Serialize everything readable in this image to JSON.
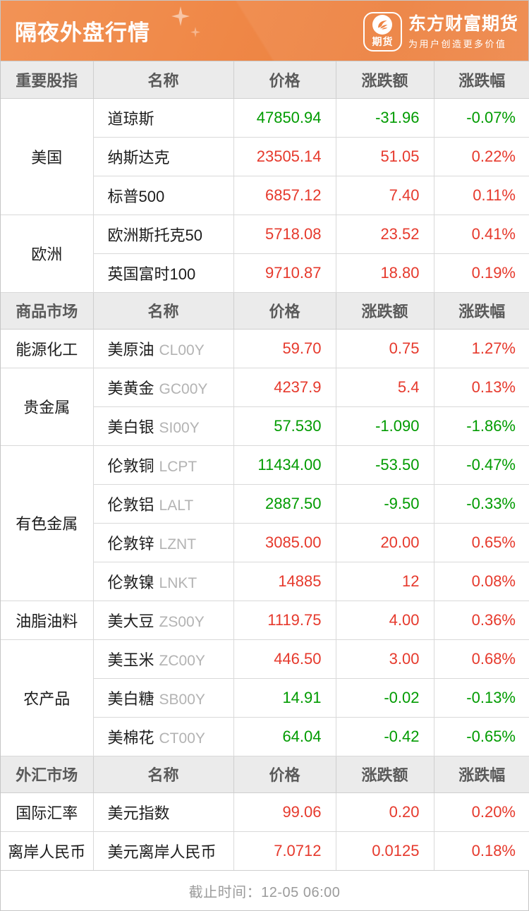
{
  "header": {
    "title": "隔夜外盘行情",
    "logo": {
      "badge_text": "期货",
      "brand": "东方财富期货",
      "slogan": "为用户创造更多价值"
    }
  },
  "columns": [
    "名称",
    "价格",
    "涨跌额",
    "涨跌幅"
  ],
  "colors": {
    "up": "#e6392c",
    "down": "#009b00",
    "banner_orange": "#ee8444",
    "section_header_bg": "#ebebeb",
    "code_gray": "#b3b3b3"
  },
  "sections": [
    {
      "label": "重要股指",
      "groups": [
        {
          "category": "美国",
          "rows": [
            {
              "name": "道琼斯",
              "code": "",
              "price": "47850.94",
              "change": "-31.96",
              "pct": "-0.07%"
            },
            {
              "name": "纳斯达克",
              "code": "",
              "price": "23505.14",
              "change": "51.05",
              "pct": "0.22%"
            },
            {
              "name": "标普500",
              "code": "",
              "price": "6857.12",
              "change": "7.40",
              "pct": "0.11%"
            }
          ]
        },
        {
          "category": "欧洲",
          "rows": [
            {
              "name": "欧洲斯托克50",
              "code": "",
              "price": "5718.08",
              "change": "23.52",
              "pct": "0.41%"
            },
            {
              "name": "英国富时100",
              "code": "",
              "price": "9710.87",
              "change": "18.80",
              "pct": "0.19%"
            }
          ]
        }
      ]
    },
    {
      "label": "商品市场",
      "groups": [
        {
          "category": "能源化工",
          "rows": [
            {
              "name": "美原油",
              "code": "CL00Y",
              "price": "59.70",
              "change": "0.75",
              "pct": "1.27%"
            }
          ]
        },
        {
          "category": "贵金属",
          "rows": [
            {
              "name": "美黄金",
              "code": "GC00Y",
              "price": "4237.9",
              "change": "5.4",
              "pct": "0.13%"
            },
            {
              "name": "美白银",
              "code": "SI00Y",
              "price": "57.530",
              "change": "-1.090",
              "pct": "-1.86%"
            }
          ]
        },
        {
          "category": "有色金属",
          "rows": [
            {
              "name": "伦敦铜",
              "code": "LCPT",
              "price": "11434.00",
              "change": "-53.50",
              "pct": "-0.47%"
            },
            {
              "name": "伦敦铝",
              "code": "LALT",
              "price": "2887.50",
              "change": "-9.50",
              "pct": "-0.33%"
            },
            {
              "name": "伦敦锌",
              "code": "LZNT",
              "price": "3085.00",
              "change": "20.00",
              "pct": "0.65%"
            },
            {
              "name": "伦敦镍",
              "code": "LNKT",
              "price": "14885",
              "change": "12",
              "pct": "0.08%"
            }
          ]
        },
        {
          "category": "油脂油料",
          "rows": [
            {
              "name": "美大豆",
              "code": "ZS00Y",
              "price": "1119.75",
              "change": "4.00",
              "pct": "0.36%"
            }
          ]
        },
        {
          "category": "农产品",
          "rows": [
            {
              "name": "美玉米",
              "code": "ZC00Y",
              "price": "446.50",
              "change": "3.00",
              "pct": "0.68%"
            },
            {
              "name": "美白糖",
              "code": "SB00Y",
              "price": "14.91",
              "change": "-0.02",
              "pct": "-0.13%"
            },
            {
              "name": "美棉花",
              "code": "CT00Y",
              "price": "64.04",
              "change": "-0.42",
              "pct": "-0.65%"
            }
          ]
        }
      ]
    },
    {
      "label": "外汇市场",
      "groups": [
        {
          "category": "国际汇率",
          "rows": [
            {
              "name": "美元指数",
              "code": "",
              "price": "99.06",
              "change": "0.20",
              "pct": "0.20%"
            }
          ]
        },
        {
          "category": "离岸人民币",
          "rows": [
            {
              "name": "美元离岸人民币",
              "code": "",
              "price": "7.0712",
              "change": "0.0125",
              "pct": "0.18%"
            }
          ]
        }
      ]
    }
  ],
  "footer": {
    "text": "截止时间：12-05 06:00"
  }
}
